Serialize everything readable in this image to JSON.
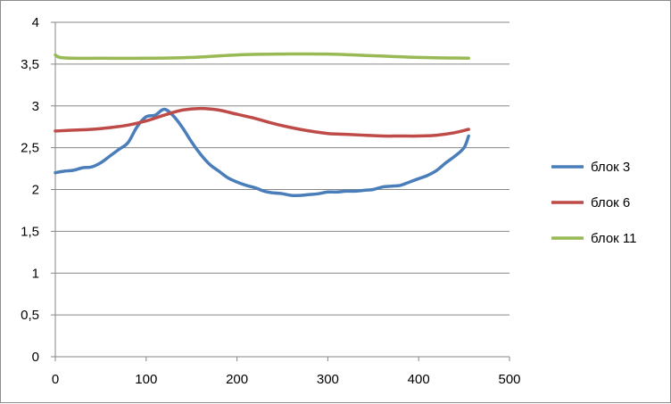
{
  "chart_data": {
    "type": "line",
    "title": "",
    "xlabel": "",
    "ylabel": "",
    "xlim": [
      0,
      500
    ],
    "ylim": [
      0,
      4
    ],
    "x_ticks": [
      "0",
      "100",
      "200",
      "300",
      "400",
      "500"
    ],
    "y_ticks": [
      "0",
      "0,5",
      "1",
      "1,5",
      "2",
      "2,5",
      "3",
      "3,5",
      "4"
    ],
    "grid": "horizontal",
    "legend_position": "right",
    "series": [
      {
        "name": "блок 3",
        "color": "#4a7ebb",
        "points": [
          [
            0,
            2.2
          ],
          [
            10,
            2.22
          ],
          [
            20,
            2.23
          ],
          [
            30,
            2.26
          ],
          [
            40,
            2.27
          ],
          [
            50,
            2.32
          ],
          [
            60,
            2.4
          ],
          [
            70,
            2.48
          ],
          [
            80,
            2.56
          ],
          [
            90,
            2.75
          ],
          [
            100,
            2.87
          ],
          [
            110,
            2.89
          ],
          [
            120,
            2.96
          ],
          [
            130,
            2.88
          ],
          [
            140,
            2.74
          ],
          [
            150,
            2.57
          ],
          [
            160,
            2.42
          ],
          [
            170,
            2.3
          ],
          [
            180,
            2.22
          ],
          [
            190,
            2.14
          ],
          [
            200,
            2.09
          ],
          [
            210,
            2.05
          ],
          [
            220,
            2.02
          ],
          [
            230,
            1.98
          ],
          [
            240,
            1.96
          ],
          [
            250,
            1.95
          ],
          [
            260,
            1.93
          ],
          [
            270,
            1.93
          ],
          [
            280,
            1.94
          ],
          [
            290,
            1.95
          ],
          [
            300,
            1.97
          ],
          [
            310,
            1.97
          ],
          [
            320,
            1.98
          ],
          [
            330,
            1.98
          ],
          [
            340,
            1.99
          ],
          [
            350,
            2.0
          ],
          [
            360,
            2.03
          ],
          [
            370,
            2.04
          ],
          [
            380,
            2.05
          ],
          [
            390,
            2.09
          ],
          [
            400,
            2.13
          ],
          [
            410,
            2.17
          ],
          [
            420,
            2.23
          ],
          [
            430,
            2.32
          ],
          [
            440,
            2.4
          ],
          [
            450,
            2.5
          ],
          [
            455,
            2.64
          ]
        ]
      },
      {
        "name": "блок 6",
        "color": "#be4b48",
        "points": [
          [
            0,
            2.7
          ],
          [
            20,
            2.71
          ],
          [
            40,
            2.72
          ],
          [
            60,
            2.74
          ],
          [
            80,
            2.77
          ],
          [
            100,
            2.82
          ],
          [
            120,
            2.89
          ],
          [
            140,
            2.95
          ],
          [
            160,
            2.97
          ],
          [
            180,
            2.95
          ],
          [
            200,
            2.9
          ],
          [
            220,
            2.85
          ],
          [
            240,
            2.79
          ],
          [
            260,
            2.74
          ],
          [
            280,
            2.7
          ],
          [
            300,
            2.67
          ],
          [
            320,
            2.66
          ],
          [
            340,
            2.65
          ],
          [
            360,
            2.64
          ],
          [
            380,
            2.64
          ],
          [
            400,
            2.64
          ],
          [
            420,
            2.65
          ],
          [
            440,
            2.68
          ],
          [
            455,
            2.72
          ]
        ]
      },
      {
        "name": "блок 11",
        "color": "#98b954",
        "points": [
          [
            0,
            3.61
          ],
          [
            5,
            3.58
          ],
          [
            20,
            3.57
          ],
          [
            50,
            3.57
          ],
          [
            100,
            3.57
          ],
          [
            150,
            3.58
          ],
          [
            200,
            3.61
          ],
          [
            250,
            3.62
          ],
          [
            300,
            3.62
          ],
          [
            350,
            3.6
          ],
          [
            400,
            3.58
          ],
          [
            455,
            3.57
          ]
        ]
      }
    ]
  }
}
